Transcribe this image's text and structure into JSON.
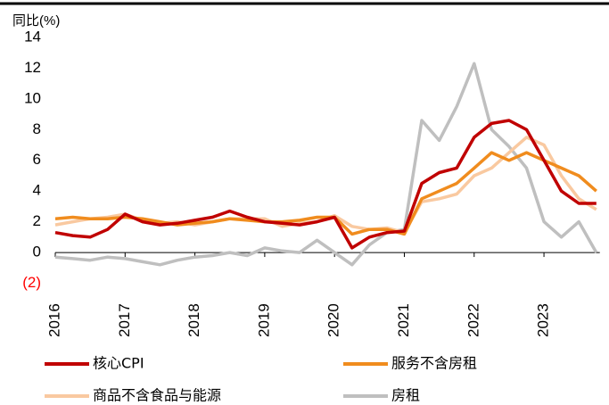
{
  "chart_data": {
    "type": "line",
    "title": "同比(%)",
    "x": [
      2016,
      2016.25,
      2016.5,
      2016.75,
      2017,
      2017.25,
      2017.5,
      2017.75,
      2018,
      2018.25,
      2018.5,
      2018.75,
      2019,
      2019.25,
      2019.5,
      2019.75,
      2020,
      2020.25,
      2020.5,
      2020.75,
      2021,
      2021.25,
      2021.5,
      2021.75,
      2022,
      2022.25,
      2022.5,
      2022.75,
      2023,
      2023.25,
      2023.5,
      2023.75
    ],
    "series": [
      {
        "name": "核心CPI",
        "color": "#c00000",
        "values": [
          1.3,
          1.1,
          1.0,
          1.5,
          2.5,
          2.0,
          1.8,
          1.9,
          2.1,
          2.3,
          2.7,
          2.3,
          2.0,
          1.9,
          1.8,
          2.0,
          2.3,
          0.3,
          1.0,
          1.3,
          1.4,
          4.5,
          5.2,
          5.5,
          7.5,
          8.4,
          8.6,
          8.0,
          6.0,
          4.0,
          3.2,
          3.2
        ]
      },
      {
        "name": "服务不含房租",
        "color": "#f08c1e",
        "values": [
          2.2,
          2.3,
          2.2,
          2.2,
          2.3,
          2.2,
          2.0,
          1.8,
          1.9,
          2.0,
          2.2,
          2.1,
          2.0,
          2.0,
          2.1,
          2.3,
          2.3,
          1.2,
          1.5,
          1.5,
          1.2,
          3.5,
          4.0,
          4.5,
          5.5,
          6.5,
          6.0,
          6.5,
          6.0,
          5.5,
          5.0,
          4.0
        ]
      },
      {
        "name": "商品不含食品与能源",
        "color": "#f9c9a0",
        "values": [
          1.8,
          2.0,
          2.2,
          2.3,
          2.5,
          2.1,
          1.9,
          2.0,
          1.8,
          2.0,
          2.2,
          2.2,
          2.2,
          1.7,
          1.9,
          2.0,
          2.4,
          1.7,
          1.5,
          1.6,
          1.3,
          3.3,
          3.5,
          3.8,
          5.0,
          5.5,
          6.5,
          7.5,
          7.0,
          5.0,
          3.5,
          2.8
        ]
      },
      {
        "name": "房租",
        "color": "#bfbfbf",
        "values": [
          -0.3,
          -0.4,
          -0.5,
          -0.3,
          -0.4,
          -0.6,
          -0.8,
          -0.5,
          -0.3,
          -0.2,
          0,
          -0.2,
          0.3,
          0.1,
          0,
          0.8,
          0,
          -0.8,
          0.5,
          1.3,
          1.5,
          8.6,
          7.3,
          9.5,
          12.3,
          8.0,
          6.9,
          5.5,
          2.0,
          1.0,
          2.0,
          0
        ]
      }
    ],
    "xlim": [
      2016,
      2023.8
    ],
    "xticks": [
      2016,
      2017,
      2018,
      2019,
      2020,
      2021,
      2022,
      2023
    ],
    "ylim": [
      -2,
      14
    ],
    "yticks": [
      {
        "value": -2,
        "label": "(2)",
        "color": "#ff0000"
      },
      0,
      2,
      4,
      6,
      8,
      10,
      12,
      14
    ]
  }
}
